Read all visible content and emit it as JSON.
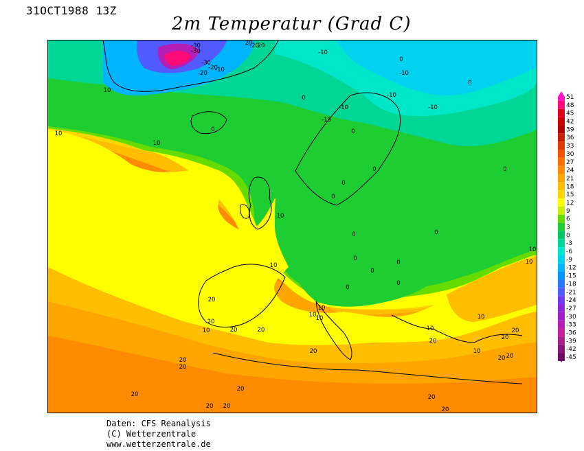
{
  "header": {
    "date": "31OCT1988 13Z",
    "title": "2m Temperatur (Grad C)"
  },
  "legend": {
    "labels": [
      "51",
      "48",
      "45",
      "42",
      "39",
      "36",
      "33",
      "30",
      "27",
      "24",
      "21",
      "18",
      "15",
      "12",
      "9",
      "6",
      "3",
      "0",
      "-3",
      "-6",
      "-9",
      "-12",
      "-15",
      "-18",
      "-21",
      "-24",
      "-27",
      "-30",
      "-33",
      "-36",
      "-39",
      "-42",
      "-45"
    ],
    "colors": [
      "#ff14c8",
      "#ff0a78",
      "#e6001e",
      "#cd0000",
      "#b40000",
      "#c81e00",
      "#dc3c00",
      "#f05000",
      "#ff6e00",
      "#ff8c00",
      "#ffa500",
      "#ffbe00",
      "#ffd700",
      "#ffff00",
      "#c8f000",
      "#64dc00",
      "#1ecd32",
      "#00c864",
      "#00d796",
      "#00e6c8",
      "#00d2f0",
      "#00b4ff",
      "#0096ff",
      "#2878ff",
      "#505aff",
      "#6e3cf0",
      "#8c28dc",
      "#a01ec8",
      "#b41eb4",
      "#c81ea0",
      "#aa1e8c",
      "#8c1478",
      "#6e0a64"
    ]
  },
  "map_labels": [
    "-30",
    "-30",
    "-20",
    "-20",
    "-20",
    "-30",
    "-10",
    "-10",
    "-10",
    "-10",
    "-10",
    "-10",
    "-10",
    "0",
    "0",
    "0",
    "0",
    "0",
    "0",
    "0",
    "0",
    "0",
    "0",
    "0",
    "0",
    "0",
    "0",
    "0",
    "0",
    "10",
    "10",
    "10",
    "10",
    "10",
    "10",
    "10",
    "10",
    "10",
    "10",
    "10",
    "10",
    "10",
    "10",
    "20",
    "20",
    "20",
    "20",
    "20",
    "20",
    "20",
    "20",
    "20",
    "20",
    "20",
    "20",
    "20",
    "20",
    "20",
    "20",
    "20",
    "20",
    "20",
    "20"
  ],
  "footer": {
    "line1": "Daten: CFS Reanalysis",
    "line2": "(C) Wetterzentrale",
    "line3": "www.wetterzentrale.de"
  }
}
